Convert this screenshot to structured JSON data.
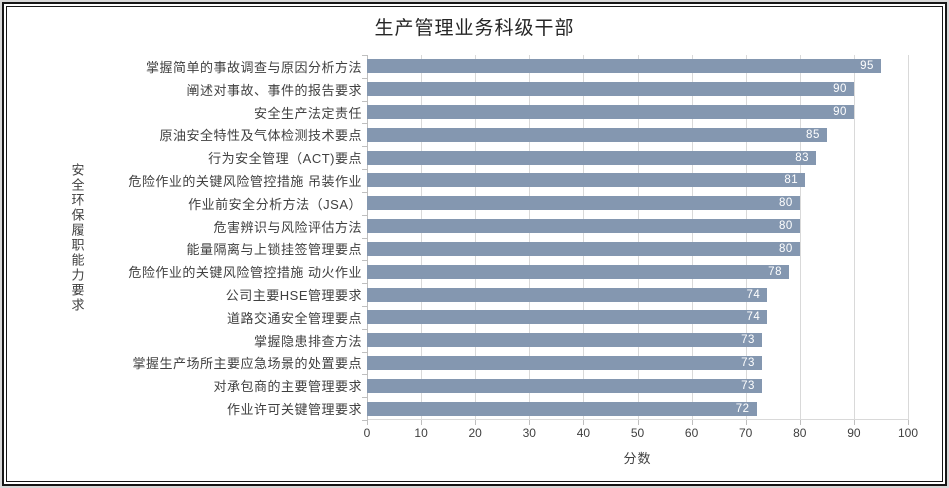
{
  "chart_data": {
    "type": "bar",
    "orientation": "horizontal",
    "title": "生产管理业务科级干部",
    "xlabel": "分数",
    "ylabel": "安全环保履职能力要求",
    "categories": [
      "掌握简单的事故调查与原因分析方法",
      "阐述对事故、事件的报告要求",
      "安全生产法定责任",
      "原油安全特性及气体检测技术要点",
      "行为安全管理（ACT)要点",
      "危险作业的关键风险管控措施 吊装作业",
      "作业前安全分析方法（JSA）",
      "危害辨识与风险评估方法",
      "能量隔离与上锁挂签管理要点",
      "危险作业的关键风险管控措施 动火作业",
      "公司主要HSE管理要求",
      "道路交通安全管理要点",
      "掌握隐患排查方法",
      "掌握生产场所主要应急场景的处置要点",
      "对承包商的主要管理要求",
      "作业许可关键管理要求"
    ],
    "values": [
      95,
      90,
      90,
      85,
      83,
      81,
      80,
      80,
      80,
      78,
      74,
      74,
      73,
      73,
      73,
      72
    ],
    "xlim": [
      0,
      100
    ],
    "xticks": [
      0,
      10,
      20,
      30,
      40,
      50,
      60,
      70,
      80,
      90,
      100
    ],
    "grid": "vertical",
    "legend": "none",
    "bar_color": "#8497B0",
    "value_label_color": "#FFFFFF",
    "gridline_color": "#D9D9D9",
    "axis_text_color": "#404040"
  }
}
